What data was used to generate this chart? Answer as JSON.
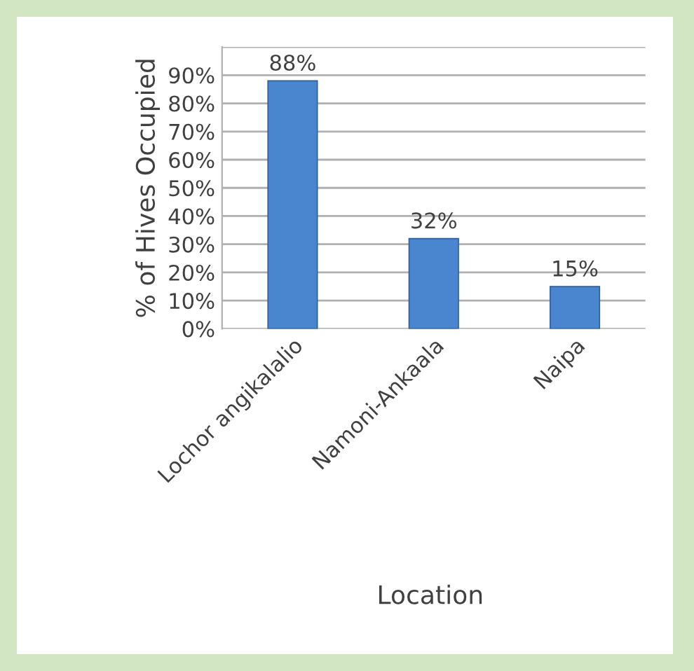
{
  "chart_data": {
    "type": "bar",
    "xlabel": "Location",
    "ylabel": "% of Hives Occupied",
    "categories": [
      "Lochor angikalalio",
      "Namoni-Ankaala",
      "Naipa"
    ],
    "values": [
      88,
      32,
      15
    ],
    "value_labels": [
      "88%",
      "32%",
      "15%"
    ],
    "color": "#4a86d0",
    "ylim": [
      0,
      100
    ],
    "yticks": [
      {
        "value": 0,
        "label": "0%"
      },
      {
        "value": 10,
        "label": "10%"
      },
      {
        "value": 20,
        "label": "20%"
      },
      {
        "value": 30,
        "label": "30%"
      },
      {
        "value": 40,
        "label": "40%"
      },
      {
        "value": 50,
        "label": "50%"
      },
      {
        "value": 60,
        "label": "60%"
      },
      {
        "value": 70,
        "label": "70%"
      },
      {
        "value": 80,
        "label": "80%"
      },
      {
        "value": 90,
        "label": "90%"
      },
      {
        "value": 100,
        "label": null
      }
    ],
    "grid": "y"
  }
}
